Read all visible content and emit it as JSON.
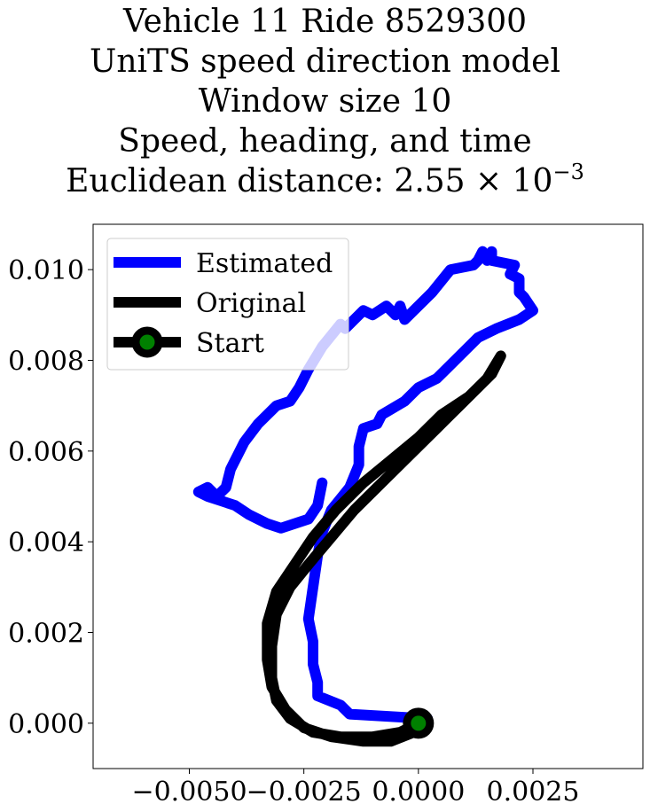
{
  "chart_data": {
    "type": "line",
    "title_lines": [
      "Vehicle 11 Ride 8529300",
      "UniTS speed direction model",
      "Window size 10",
      "Speed, heading, and time"
    ],
    "title_metric_prefix": "Euclidean distance: 2.55 × 10",
    "title_metric_exponent": "−3",
    "xlabel": "",
    "ylabel": "",
    "xlim": [
      -0.0071,
      0.0049
    ],
    "ylim": [
      -0.001,
      0.011
    ],
    "x_ticks": [
      -0.005,
      -0.0025,
      0.0,
      0.0025
    ],
    "x_tick_labels": [
      "−0.0050",
      "−0.0025",
      "0.0000",
      "0.0025"
    ],
    "y_ticks": [
      0.0,
      0.002,
      0.004,
      0.006,
      0.008,
      0.01
    ],
    "y_tick_labels": [
      "0.000",
      "0.002",
      "0.004",
      "0.006",
      "0.008",
      "0.010"
    ],
    "grid": false,
    "legend_position": "top-left",
    "legend": [
      "Estimated",
      "Original",
      "Start"
    ],
    "series": [
      {
        "name": "Estimated",
        "color": "#0000ff",
        "points": [
          [
            0.0002,
            0.0001
          ],
          [
            -0.0015,
            0.0002
          ],
          [
            -0.0017,
            0.0004
          ],
          [
            -0.0022,
            0.0006
          ],
          [
            -0.0022,
            0.0009
          ],
          [
            -0.0023,
            0.0013
          ],
          [
            -0.0023,
            0.0018
          ],
          [
            -0.0024,
            0.0023
          ],
          [
            -0.0023,
            0.003
          ],
          [
            -0.0022,
            0.0037
          ],
          [
            -0.0021,
            0.0042
          ],
          [
            -0.0019,
            0.0047
          ],
          [
            -0.0015,
            0.0052
          ],
          [
            -0.0013,
            0.0057
          ],
          [
            -0.0013,
            0.0061
          ],
          [
            -0.0012,
            0.0065
          ],
          [
            -0.0009,
            0.0066
          ],
          [
            -0.0008,
            0.0068
          ],
          [
            -0.0003,
            0.0071
          ],
          [
            0.0,
            0.0074
          ],
          [
            0.0004,
            0.0076
          ],
          [
            0.0008,
            0.008
          ],
          [
            0.0013,
            0.0085
          ],
          [
            0.0017,
            0.0087
          ],
          [
            0.0022,
            0.0089
          ],
          [
            0.0025,
            0.0091
          ],
          [
            0.0023,
            0.0094
          ],
          [
            0.0022,
            0.0095
          ],
          [
            0.0022,
            0.0098
          ],
          [
            0.002,
            0.0099
          ],
          [
            0.0021,
            0.0101
          ],
          [
            0.0016,
            0.0102
          ],
          [
            0.0016,
            0.0104
          ],
          [
            0.0015,
            0.0102
          ],
          [
            0.0014,
            0.0104
          ],
          [
            0.0013,
            0.0102
          ],
          [
            0.0012,
            0.0101
          ],
          [
            0.0007,
            0.01
          ],
          [
            0.0003,
            0.0095
          ],
          [
            -0.0003,
            0.0089
          ],
          [
            -0.0004,
            0.0092
          ],
          [
            -0.0005,
            0.009
          ],
          [
            -0.0007,
            0.0092
          ],
          [
            -0.001,
            0.009
          ],
          [
            -0.0012,
            0.0091
          ],
          [
            -0.0016,
            0.0087
          ],
          [
            -0.0017,
            0.0088
          ],
          [
            -0.0021,
            0.0083
          ],
          [
            -0.0024,
            0.0078
          ],
          [
            -0.0026,
            0.0074
          ],
          [
            -0.0028,
            0.0071
          ],
          [
            -0.0031,
            0.007
          ],
          [
            -0.0035,
            0.0066
          ],
          [
            -0.0038,
            0.0062
          ],
          [
            -0.0041,
            0.0056
          ],
          [
            -0.0042,
            0.0052
          ],
          [
            -0.0044,
            0.005
          ],
          [
            -0.0046,
            0.0052
          ],
          [
            -0.0048,
            0.0051
          ],
          [
            -0.0046,
            0.005
          ],
          [
            -0.0043,
            0.0049
          ],
          [
            -0.004,
            0.0048
          ],
          [
            -0.0037,
            0.0046
          ],
          [
            -0.0033,
            0.0044
          ],
          [
            -0.003,
            0.0043
          ],
          [
            -0.0027,
            0.0044
          ],
          [
            -0.0024,
            0.0045
          ],
          [
            -0.0022,
            0.0048
          ],
          [
            -0.0021,
            0.0053
          ]
        ]
      },
      {
        "name": "Original",
        "color": "#000000",
        "points": [
          [
            0.0,
            0.0
          ],
          [
            -0.0004,
            -0.0002
          ],
          [
            -0.001,
            -0.0003
          ],
          [
            -0.0017,
            -0.0003
          ],
          [
            -0.0023,
            -0.0002
          ],
          [
            -0.0028,
            0.0001
          ],
          [
            -0.0031,
            0.0005
          ],
          [
            -0.0032,
            0.001
          ],
          [
            -0.0032,
            0.0017
          ],
          [
            -0.0031,
            0.0024
          ],
          [
            -0.0028,
            0.003
          ],
          [
            -0.0024,
            0.0035
          ],
          [
            -0.0019,
            0.0041
          ],
          [
            -0.0014,
            0.0047
          ],
          [
            -0.0008,
            0.0053
          ],
          [
            -0.0002,
            0.0059
          ],
          [
            0.0004,
            0.0065
          ],
          [
            0.001,
            0.0071
          ],
          [
            0.0015,
            0.0076
          ],
          [
            0.0018,
            0.0081
          ],
          [
            0.0016,
            0.0077
          ],
          [
            0.0011,
            0.0072
          ],
          [
            0.0005,
            0.0068
          ],
          [
            0.0,
            0.0063
          ],
          [
            -0.0006,
            0.0058
          ],
          [
            -0.0012,
            0.0053
          ],
          [
            -0.0018,
            0.0047
          ],
          [
            -0.0023,
            0.0041
          ],
          [
            -0.0027,
            0.0035
          ],
          [
            -0.0031,
            0.0029
          ],
          [
            -0.0033,
            0.0022
          ],
          [
            -0.0033,
            0.0014
          ],
          [
            -0.0032,
            0.0008
          ],
          [
            -0.0029,
            0.0003
          ],
          [
            -0.0025,
            -0.0001
          ],
          [
            -0.0019,
            -0.0003
          ],
          [
            -0.0012,
            -0.0004
          ],
          [
            -0.0006,
            -0.0004
          ],
          [
            -0.0001,
            -0.0002
          ],
          [
            0.0001,
            0.0
          ]
        ]
      }
    ],
    "start_point": {
      "name": "Start",
      "x": 0.0,
      "y": 0.0,
      "fill": "#008000",
      "edge": "#000000"
    }
  }
}
